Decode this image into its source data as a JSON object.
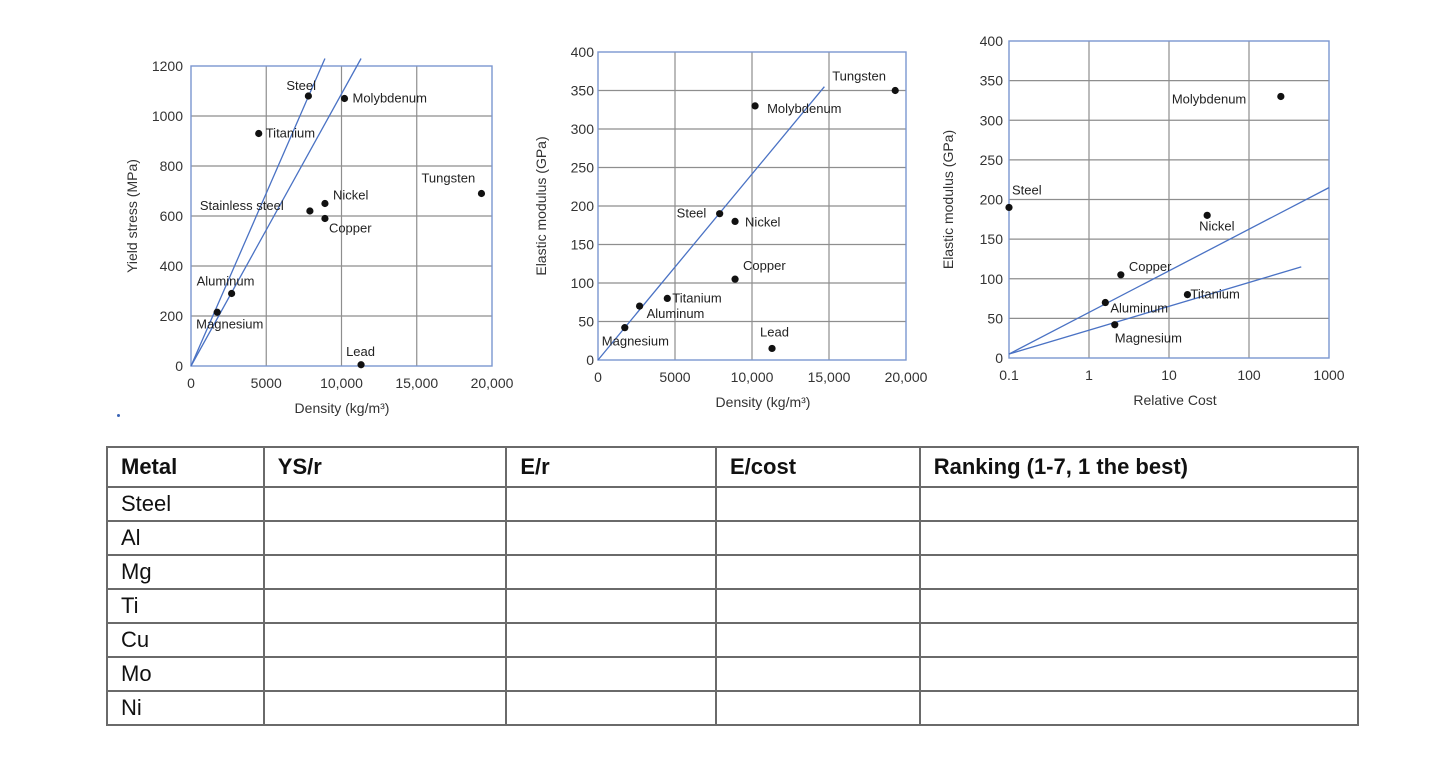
{
  "chart_data": [
    {
      "type": "scatter",
      "xlabel": "Density (kg/m³)",
      "ylabel": "Yield stress (MPa)",
      "xlim": [
        0,
        20000
      ],
      "ylim": [
        0,
        1200
      ],
      "xticks": [
        "0",
        "5000",
        "10,000",
        "15,000",
        "20,000"
      ],
      "yticks": [
        "0",
        "200",
        "400",
        "600",
        "800",
        "1000",
        "1200"
      ],
      "points": [
        {
          "label": "Steel",
          "x": 7800,
          "y": 1080
        },
        {
          "label": "Molybdenum",
          "x": 10200,
          "y": 1070
        },
        {
          "label": "Titanium",
          "x": 4500,
          "y": 930
        },
        {
          "label": "Tungsten",
          "x": 19300,
          "y": 690
        },
        {
          "label": "Nickel",
          "x": 8900,
          "y": 650
        },
        {
          "label": "Stainless steel",
          "x": 7900,
          "y": 620
        },
        {
          "label": "Copper",
          "x": 8900,
          "y": 590
        },
        {
          "label": "Aluminum",
          "x": 2700,
          "y": 290
        },
        {
          "label": "Magnesium",
          "x": 1740,
          "y": 215
        },
        {
          "label": "Lead",
          "x": 11300,
          "y": 5
        }
      ],
      "lines": [
        {
          "x": [
            0,
            8900
          ],
          "y": [
            0,
            1230
          ]
        },
        {
          "x": [
            0,
            11300
          ],
          "y": [
            0,
            1230
          ]
        }
      ]
    },
    {
      "type": "scatter",
      "xlabel": "Density (kg/m³)",
      "ylabel": "Elastic modulus (GPa)",
      "xlim": [
        0,
        20000
      ],
      "ylim": [
        0,
        400
      ],
      "xticks": [
        "0",
        "5000",
        "10,000",
        "15,000",
        "20,000"
      ],
      "yticks": [
        "0",
        "50",
        "100",
        "150",
        "200",
        "250",
        "300",
        "350",
        "400"
      ],
      "points": [
        {
          "label": "Tungsten",
          "x": 19300,
          "y": 350
        },
        {
          "label": "Molybdenum",
          "x": 10200,
          "y": 330
        },
        {
          "label": "Steel",
          "x": 7900,
          "y": 190
        },
        {
          "label": "Nickel",
          "x": 8900,
          "y": 180
        },
        {
          "label": "Copper",
          "x": 8900,
          "y": 105
        },
        {
          "label": "Titanium",
          "x": 4500,
          "y": 80
        },
        {
          "label": "Aluminum",
          "x": 2700,
          "y": 70
        },
        {
          "label": "Magnesium",
          "x": 1740,
          "y": 42
        },
        {
          "label": "Lead",
          "x": 11300,
          "y": 15
        }
      ],
      "lines": [
        {
          "x": [
            0,
            14700
          ],
          "y": [
            0,
            355
          ]
        }
      ]
    },
    {
      "type": "scatter",
      "xlabel": "Relative Cost",
      "ylabel": "Elastic modulus (GPa)",
      "xscale": "log",
      "xlim": [
        0.1,
        1000
      ],
      "ylim": [
        0,
        400
      ],
      "xticks": [
        "0.1",
        "1",
        "10",
        "100",
        "1000"
      ],
      "yticks": [
        "0",
        "50",
        "100",
        "150",
        "200",
        "250",
        "300",
        "350",
        "400"
      ],
      "points": [
        {
          "label": "Molybdenum",
          "x": 250,
          "y": 330
        },
        {
          "label": "Steel",
          "x": 0.1,
          "y": 190
        },
        {
          "label": "Nickel",
          "x": 30,
          "y": 180
        },
        {
          "label": "Copper",
          "x": 2.5,
          "y": 105
        },
        {
          "label": "Titanium",
          "x": 17,
          "y": 80
        },
        {
          "label": "Aluminum",
          "x": 1.6,
          "y": 70
        },
        {
          "label": "Magnesium",
          "x": 2.1,
          "y": 42
        }
      ],
      "lines": [
        {
          "x": [
            0.1,
            1000
          ],
          "y": [
            5,
            215
          ]
        },
        {
          "x": [
            0.1,
            450
          ],
          "y": [
            5,
            115
          ]
        }
      ]
    }
  ],
  "table": {
    "headers": [
      "Metal",
      "YS/r",
      "E/r",
      "E/cost",
      "Ranking (1-7, 1 the best)"
    ],
    "rows": [
      [
        "Steel",
        "",
        "",
        "",
        ""
      ],
      [
        "Al",
        "",
        "",
        "",
        ""
      ],
      [
        "Mg",
        "",
        "",
        "",
        ""
      ],
      [
        "Ti",
        "",
        "",
        "",
        ""
      ],
      [
        "Cu",
        "",
        "",
        "",
        ""
      ],
      [
        "Mo",
        "",
        "",
        "",
        ""
      ],
      [
        "Ni",
        "",
        "",
        "",
        ""
      ]
    ]
  },
  "colors": {
    "grid": "#8e8e8e",
    "frame": "#7b96cf",
    "line": "#4a72c4",
    "dot": "#111111"
  }
}
